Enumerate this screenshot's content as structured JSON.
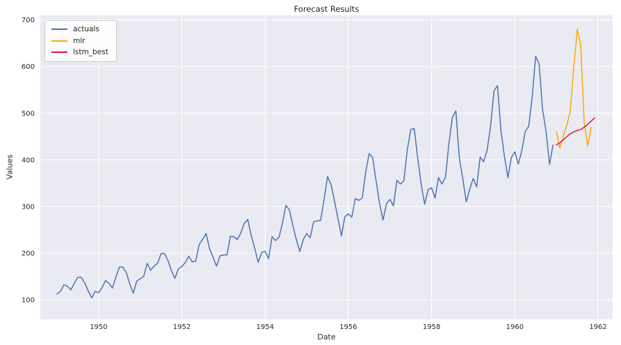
{
  "figure": {
    "title": "Forecast Results",
    "xlabel": "Date",
    "ylabel": "Values"
  },
  "chart_data": {
    "type": "line",
    "title": "Forecast Results",
    "xlabel": "Date",
    "ylabel": "Values",
    "xlim": [
      1948.6,
      1962.35
    ],
    "ylim": [
      58,
      710
    ],
    "xticks": [
      1950,
      1952,
      1954,
      1956,
      1958,
      1960,
      1962
    ],
    "yticks": [
      100,
      200,
      300,
      400,
      500,
      600,
      700
    ],
    "grid": true,
    "legend_position": "upper-left",
    "plot_background": "#eaeaf2",
    "grid_color": "#ffffff",
    "series": [
      {
        "name": "actuals",
        "color": "#4c72b0",
        "x_start": 1949.0,
        "x_step": 0.0833333,
        "values": [
          112,
          118,
          132,
          129,
          121,
          135,
          148,
          148,
          136,
          119,
          104,
          118,
          115,
          126,
          141,
          135,
          125,
          149,
          170,
          170,
          158,
          133,
          114,
          140,
          145,
          150,
          178,
          163,
          172,
          178,
          199,
          199,
          184,
          162,
          146,
          166,
          171,
          180,
          193,
          181,
          183,
          218,
          230,
          242,
          209,
          191,
          172,
          194,
          196,
          196,
          236,
          235,
          229,
          243,
          264,
          272,
          237,
          211,
          180,
          201,
          204,
          188,
          235,
          227,
          234,
          264,
          302,
          293,
          259,
          229,
          203,
          229,
          242,
          233,
          267,
          269,
          270,
          315,
          364,
          347,
          312,
          274,
          237,
          278,
          284,
          277,
          317,
          313,
          318,
          374,
          413,
          405,
          355,
          306,
          271,
          306,
          315,
          301,
          356,
          348,
          355,
          422,
          465,
          467,
          404,
          347,
          305,
          336,
          340,
          318,
          362,
          348,
          363,
          435,
          491,
          505,
          404,
          359,
          310,
          337,
          360,
          342,
          406,
          396,
          420,
          472,
          548,
          559,
          463,
          407,
          362,
          405,
          417,
          391,
          419,
          461,
          472,
          535,
          622,
          606,
          508,
          461,
          390,
          432
        ]
      },
      {
        "name": "mlr",
        "color": "#ffa500",
        "x_start": 1961.0,
        "x_step": 0.0833333,
        "values": [
          460,
          425,
          452,
          475,
          505,
          600,
          680,
          645,
          480,
          430,
          470
        ]
      },
      {
        "name": "lstm_best",
        "color": "#dc143c",
        "x_start": 1961.0,
        "x_step": 0.0833333,
        "values": [
          432,
          437,
          443,
          450,
          456,
          460,
          463,
          465,
          470,
          476,
          483,
          490
        ]
      }
    ]
  }
}
